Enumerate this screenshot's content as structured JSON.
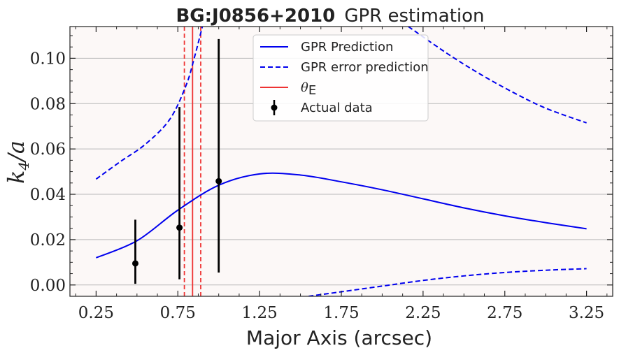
{
  "chart_data": {
    "type": "line",
    "title_bold": "BG:J0856+2010",
    "title_rest": "GPR estimation",
    "xlabel": "Major Axis (arcsec)",
    "ylabel": "k4/a",
    "xlim": [
      0.09,
      3.41
    ],
    "ylim": [
      -0.005,
      0.114
    ],
    "x_ticks": [
      0.25,
      0.75,
      1.25,
      1.75,
      2.25,
      2.75,
      3.25
    ],
    "x_tick_labels": [
      "0.25",
      "0.75",
      "1.25",
      "1.75",
      "2.25",
      "2.75",
      "3.25"
    ],
    "y_ticks": [
      0.0,
      0.02,
      0.04,
      0.06,
      0.08,
      0.1
    ],
    "y_tick_labels": [
      "0.00",
      "0.02",
      "0.04",
      "0.06",
      "0.08",
      "0.10"
    ],
    "grid": "horizontal",
    "legend_position": "top-center",
    "background_color": "#fcf8f7",
    "series": [
      {
        "name": "GPR Prediction",
        "style": "solid",
        "color": "#0000ee",
        "x": [
          0.25,
          0.5,
          0.75,
          1.0,
          1.25,
          1.5,
          1.75,
          2.0,
          2.25,
          2.5,
          2.75,
          3.0,
          3.25
        ],
        "y": [
          0.012,
          0.0195,
          0.033,
          0.044,
          0.049,
          0.0485,
          0.0455,
          0.042,
          0.038,
          0.034,
          0.0305,
          0.0275,
          0.0248
        ]
      },
      {
        "name": "GPR error prediction",
        "style": "dashed",
        "color": "#0000ee",
        "x": [
          0.25,
          0.4,
          0.55,
          0.7,
          0.8,
          0.85,
          0.9
        ],
        "y": [
          0.0467,
          0.0545,
          0.062,
          0.073,
          0.088,
          0.1,
          0.114
        ]
      },
      {
        "name": "",
        "style": "dashed",
        "color": "#0000ee",
        "x": [
          2.16,
          2.4,
          2.6,
          2.8,
          3.0,
          3.25
        ],
        "y": [
          0.114,
          0.102,
          0.093,
          0.085,
          0.078,
          0.0715
        ]
      },
      {
        "name": "",
        "style": "dashed",
        "color": "#0000ee",
        "x": [
          1.55,
          1.75,
          2.0,
          2.25,
          2.5,
          2.75,
          3.0,
          3.25
        ],
        "y": [
          -0.005,
          -0.003,
          -0.0005,
          0.002,
          0.004,
          0.0055,
          0.0065,
          0.0072
        ]
      }
    ],
    "theta_e": {
      "name": "θE",
      "color": "#ee3333",
      "x": 0.84,
      "x_lower": 0.79,
      "x_upper": 0.89
    },
    "actual_data": {
      "name": "Actual data",
      "color": "#000000",
      "x": [
        0.49,
        0.76,
        1.0
      ],
      "y": [
        0.0095,
        0.0253,
        0.0458
      ],
      "y_low": [
        0.0005,
        0.0025,
        0.0055
      ],
      "y_high": [
        0.0288,
        0.0785,
        0.1085
      ]
    }
  },
  "legend": {
    "gpr_prediction": "GPR Prediction",
    "gpr_error": "GPR error prediction",
    "theta_e_symbol": "θ",
    "theta_e_sub": "E",
    "actual_data": "Actual data"
  }
}
